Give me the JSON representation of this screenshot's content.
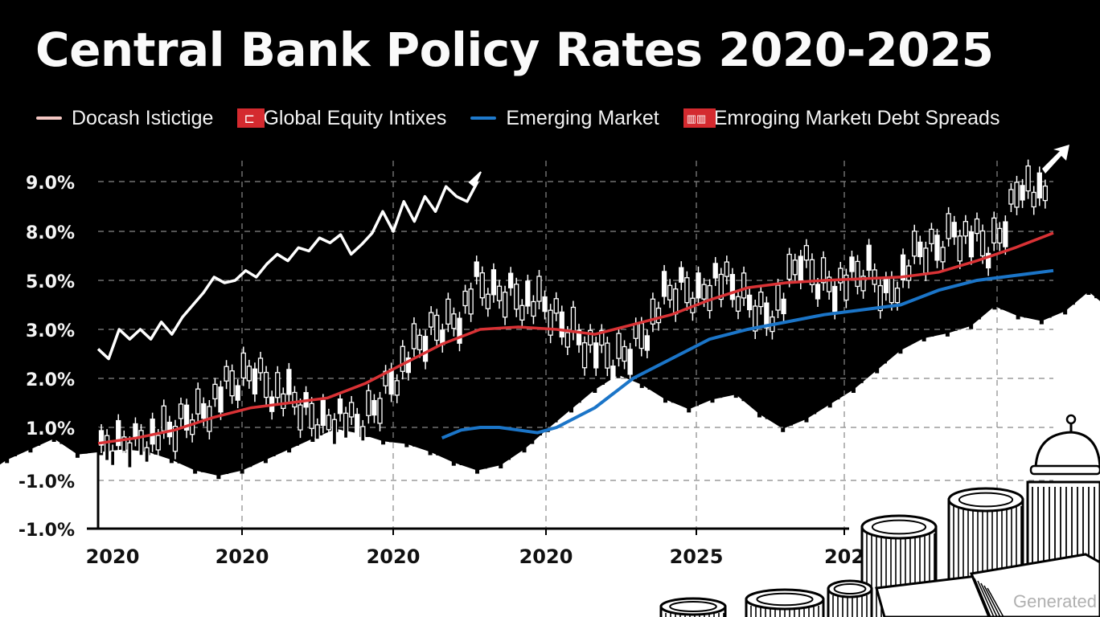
{
  "chart_data": {
    "type": "line",
    "title": "Central Bank Policy Rates 2020-2025",
    "xlabel": "",
    "ylabel": "",
    "grid": true,
    "legend_position": "top",
    "legend": [
      {
        "label": "Docash Istictige",
        "color": "#f4c7c3",
        "marker": "line"
      },
      {
        "label": "Global Equity Intixes",
        "color": "#d42a2f",
        "marker": "box",
        "glyph": "⊏"
      },
      {
        "label": "Emerging Market",
        "color": "#1f7acc",
        "marker": "line"
      },
      {
        "label": "Emroging Marketι Debt Spreads",
        "color": "#d42a2f",
        "marker": "box",
        "glyph": "▥▥"
      }
    ],
    "y_ticks": [
      "9.0%",
      "8.0%",
      "5.0%",
      "3.0%",
      "2.0%",
      "1.0%",
      "-1.0%",
      "-1.0%"
    ],
    "x_ticks": [
      "2020",
      "2020",
      "2020",
      "2020",
      "2025",
      "202"
    ],
    "ylim": [
      -1.0,
      9.0
    ],
    "series": [
      {
        "name": "White trend line",
        "color": "#ffffff",
        "x": [
          0,
          0.5,
          1,
          1.5,
          2,
          2.5,
          3,
          3.5,
          4,
          4.5,
          5,
          5.5,
          6,
          6.5,
          7,
          7.5,
          8,
          8.5,
          9,
          9.5,
          10,
          10.5,
          11,
          11.5,
          12,
          12.5,
          13,
          13.5,
          14,
          14.5,
          15,
          15.5,
          16,
          16.5,
          17,
          17.5,
          18
        ],
        "values": [
          2.6,
          2.4,
          3.0,
          2.8,
          3.0,
          2.8,
          3.3,
          2.9,
          3.5,
          4.0,
          4.5,
          5.2,
          4.9,
          5.0,
          5.6,
          5.2,
          6.0,
          6.6,
          6.2,
          7.0,
          6.8,
          7.6,
          7.3,
          7.8,
          6.6,
          7.2,
          7.9,
          8.4,
          8.0,
          8.6,
          8.2,
          8.7,
          8.4,
          8.9,
          8.7,
          8.6,
          9.0
        ]
      },
      {
        "name": "Red moving average",
        "color": "#d93235",
        "x": [
          0,
          2,
          4,
          6,
          8,
          10,
          12,
          14,
          16,
          18,
          20,
          22,
          24,
          26,
          28,
          30,
          32,
          34,
          36,
          38,
          40,
          42,
          44,
          46,
          48,
          50
        ],
        "values": [
          0.4,
          0.6,
          0.9,
          1.2,
          1.4,
          1.5,
          1.6,
          1.9,
          2.3,
          2.7,
          3.0,
          3.1,
          3.0,
          2.9,
          3.2,
          3.6,
          4.2,
          4.7,
          4.9,
          5.0,
          5.1,
          5.2,
          5.5,
          6.2,
          7.0,
          7.9
        ]
      },
      {
        "name": "Blue line",
        "color": "#1b75c8",
        "x": [
          18,
          19,
          20,
          21,
          22,
          23,
          24,
          26,
          28,
          30,
          32,
          34,
          36,
          38,
          40,
          42,
          44,
          46,
          48,
          50
        ],
        "values": [
          0.6,
          0.9,
          1.0,
          1.0,
          0.9,
          0.8,
          1.0,
          1.4,
          2.0,
          2.4,
          2.8,
          3.0,
          3.3,
          3.6,
          3.8,
          4.0,
          4.6,
          5.0,
          5.3,
          5.6
        ]
      },
      {
        "name": "Candles",
        "color": "#ffffff",
        "x_range": [
          0,
          50
        ],
        "values": [
          0.0,
          0.3,
          0.5,
          0.6,
          0.8,
          1.2,
          1.4,
          1.7,
          1.9,
          2.2,
          1.8,
          1.6,
          1.3,
          1.1,
          1.3,
          0.9,
          1.4,
          2.0,
          2.4,
          2.8,
          3.2,
          3.6,
          4.8,
          4.4,
          4.6,
          4.2,
          3.9,
          3.2,
          2.9,
          2.6,
          2.3,
          2.6,
          3.1,
          4.2,
          4.7,
          4.4,
          5.2,
          4.6,
          4.1,
          3.7,
          4.2,
          6.3,
          5.1,
          4.9,
          5.0,
          5.6,
          4.4,
          5.4,
          6.7,
          7.0,
          8.1,
          7.6,
          6.8,
          8.2,
          9.1,
          8.6,
          8.9
        ]
      },
      {
        "name": "Volume band",
        "color": "#ffffff",
        "x_range": [
          -6,
          58
        ],
        "values": [
          -0.4,
          0.2,
          0.6,
          1.0,
          0.4,
          0.5,
          0.6,
          0.5,
          0.2,
          -0.2,
          -0.4,
          -0.2,
          0.2,
          0.6,
          1.0,
          1.2,
          1.1,
          0.9,
          0.8,
          0.5,
          0.1,
          -0.2,
          0.0,
          0.6,
          1.2,
          1.6,
          2.0,
          2.3,
          2.1,
          1.8,
          1.6,
          1.8,
          1.9,
          1.5,
          1.2,
          1.4,
          1.7,
          2.0,
          2.4,
          2.8,
          3.1,
          3.3,
          3.6,
          4.4,
          4.0,
          3.8,
          4.2,
          5.0,
          4.2,
          3.6,
          3.2,
          2.8,
          2.6
        ]
      }
    ]
  },
  "watermark": "Generated"
}
